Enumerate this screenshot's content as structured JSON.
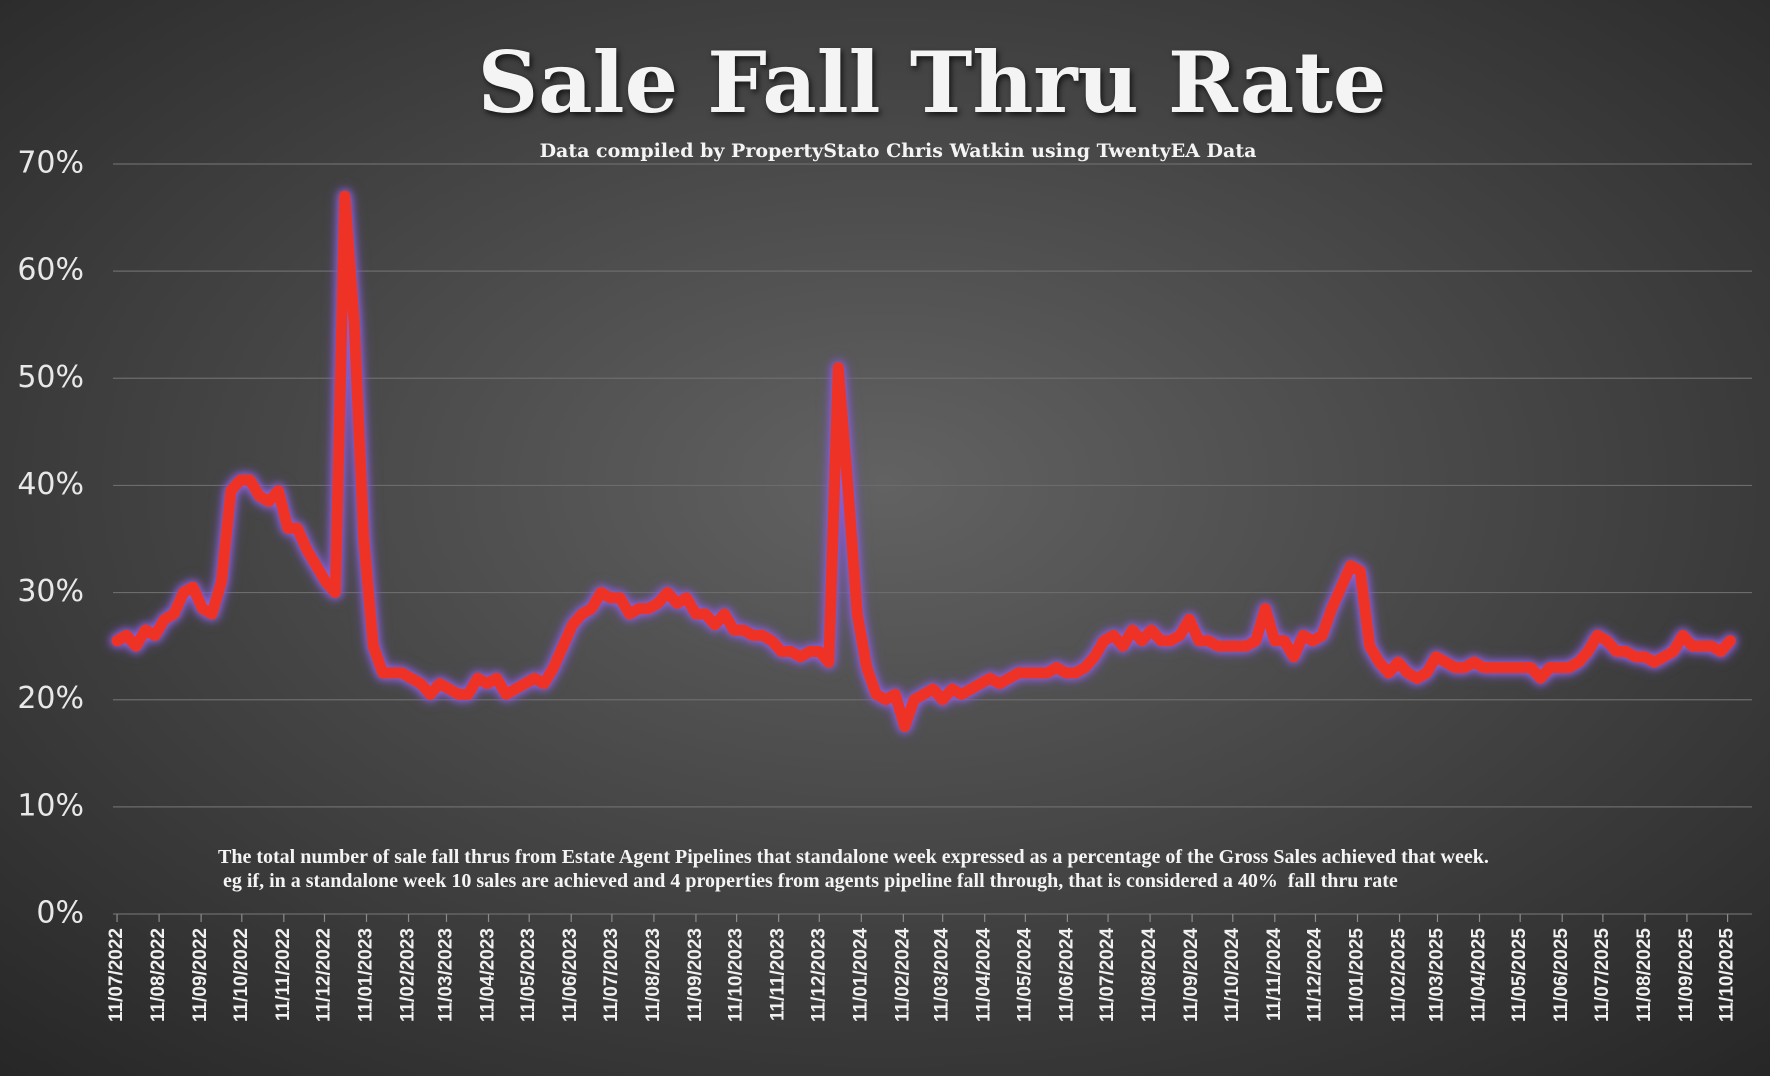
{
  "chart_data": {
    "type": "line",
    "title": "Sale Fall Thru Rate",
    "subtitle": "Data compiled by PropertyStato Chris Watkin using TwentyEA Data",
    "annotation": [
      "The total number of sale fall thrus from Estate Agent Pipelines that standalone week expressed as a percentage of the Gross Sales achieved that week.",
      " eg if, in a standalone week 10 sales are achieved and 4 properties from agents pipeline fall through, that is considered a 40%  fall thru rate"
    ],
    "color": "#ee3326",
    "grid": true,
    "ylim": [
      0,
      70
    ],
    "yticks": [
      {
        "value": 0,
        "label": "0%"
      },
      {
        "value": 10,
        "label": "10%"
      },
      {
        "value": 20,
        "label": "20%"
      },
      {
        "value": 30,
        "label": "30%"
      },
      {
        "value": 40,
        "label": "40%"
      },
      {
        "value": 50,
        "label": "50%"
      },
      {
        "value": 60,
        "label": "60%"
      },
      {
        "value": 70,
        "label": "70%"
      }
    ],
    "xlim": [
      "2022-07-08",
      "2025-10-29"
    ],
    "xticks": [
      {
        "value": "2022-07-11",
        "label": "11/07/2022"
      },
      {
        "value": "2022-08-11",
        "label": "11/08/2022"
      },
      {
        "value": "2022-09-11",
        "label": "11/09/2022"
      },
      {
        "value": "2022-10-11",
        "label": "11/10/2022"
      },
      {
        "value": "2022-11-11",
        "label": "11/11/2022"
      },
      {
        "value": "2022-12-11",
        "label": "11/12/2022"
      },
      {
        "value": "2023-01-11",
        "label": "11/01/2023"
      },
      {
        "value": "2023-02-11",
        "label": "11/02/2023"
      },
      {
        "value": "2023-03-11",
        "label": "11/03/2023"
      },
      {
        "value": "2023-04-11",
        "label": "11/04/2023"
      },
      {
        "value": "2023-05-11",
        "label": "11/05/2023"
      },
      {
        "value": "2023-06-11",
        "label": "11/06/2023"
      },
      {
        "value": "2023-07-11",
        "label": "11/07/2023"
      },
      {
        "value": "2023-08-11",
        "label": "11/08/2023"
      },
      {
        "value": "2023-09-11",
        "label": "11/09/2023"
      },
      {
        "value": "2023-10-11",
        "label": "11/10/2023"
      },
      {
        "value": "2023-11-11",
        "label": "11/11/2023"
      },
      {
        "value": "2023-12-11",
        "label": "11/12/2023"
      },
      {
        "value": "2024-01-11",
        "label": "11/01/2024"
      },
      {
        "value": "2024-02-11",
        "label": "11/02/2024"
      },
      {
        "value": "2024-03-11",
        "label": "11/03/2024"
      },
      {
        "value": "2024-04-11",
        "label": "11/04/2024"
      },
      {
        "value": "2024-05-11",
        "label": "11/05/2024"
      },
      {
        "value": "2024-06-11",
        "label": "11/06/2024"
      },
      {
        "value": "2024-07-11",
        "label": "11/07/2024"
      },
      {
        "value": "2024-08-11",
        "label": "11/08/2024"
      },
      {
        "value": "2024-09-11",
        "label": "11/09/2024"
      },
      {
        "value": "2024-10-11",
        "label": "11/10/2024"
      },
      {
        "value": "2024-11-11",
        "label": "11/11/2024"
      },
      {
        "value": "2024-12-11",
        "label": "11/12/2024"
      },
      {
        "value": "2025-01-11",
        "label": "11/01/2025"
      },
      {
        "value": "2025-02-11",
        "label": "11/02/2025"
      },
      {
        "value": "2025-03-11",
        "label": "11/03/2025"
      },
      {
        "value": "2025-04-11",
        "label": "11/04/2025"
      },
      {
        "value": "2025-05-11",
        "label": "11/05/2025"
      },
      {
        "value": "2025-06-11",
        "label": "11/06/2025"
      },
      {
        "value": "2025-07-11",
        "label": "11/07/2025"
      },
      {
        "value": "2025-08-11",
        "label": "11/08/2025"
      },
      {
        "value": "2025-09-11",
        "label": "11/09/2025"
      },
      {
        "value": "2025-10-11",
        "label": "11/10/2025"
      }
    ],
    "x": [
      "2022-07-11",
      "2022-07-18",
      "2022-07-25",
      "2022-08-01",
      "2022-08-08",
      "2022-08-15",
      "2022-08-22",
      "2022-08-29",
      "2022-09-05",
      "2022-09-12",
      "2022-09-19",
      "2022-09-26",
      "2022-10-03",
      "2022-10-10",
      "2022-10-17",
      "2022-10-24",
      "2022-10-31",
      "2022-11-07",
      "2022-11-14",
      "2022-11-21",
      "2022-11-28",
      "2022-12-05",
      "2022-12-12",
      "2022-12-19",
      "2022-12-26",
      "2023-01-02",
      "2023-01-09",
      "2023-01-16",
      "2023-01-23",
      "2023-01-30",
      "2023-02-06",
      "2023-02-13",
      "2023-02-20",
      "2023-02-27",
      "2023-03-06",
      "2023-03-13",
      "2023-03-20",
      "2023-03-27",
      "2023-04-03",
      "2023-04-10",
      "2023-04-17",
      "2023-04-24",
      "2023-05-01",
      "2023-05-08",
      "2023-05-15",
      "2023-05-22",
      "2023-05-29",
      "2023-06-05",
      "2023-06-12",
      "2023-06-19",
      "2023-06-26",
      "2023-07-03",
      "2023-07-10",
      "2023-07-17",
      "2023-07-24",
      "2023-07-31",
      "2023-08-07",
      "2023-08-14",
      "2023-08-21",
      "2023-08-28",
      "2023-09-04",
      "2023-09-11",
      "2023-09-18",
      "2023-09-25",
      "2023-10-02",
      "2023-10-09",
      "2023-10-16",
      "2023-10-23",
      "2023-10-30",
      "2023-11-06",
      "2023-11-13",
      "2023-11-20",
      "2023-11-27",
      "2023-12-04",
      "2023-12-11",
      "2023-12-18",
      "2023-12-25",
      "2024-01-01",
      "2024-01-08",
      "2024-01-15",
      "2024-01-22",
      "2024-01-29",
      "2024-02-05",
      "2024-02-12",
      "2024-02-19",
      "2024-02-26",
      "2024-03-04",
      "2024-03-11",
      "2024-03-18",
      "2024-03-25",
      "2024-04-01",
      "2024-04-08",
      "2024-04-15",
      "2024-04-22",
      "2024-04-29",
      "2024-05-06",
      "2024-05-13",
      "2024-05-20",
      "2024-05-27",
      "2024-06-03",
      "2024-06-10",
      "2024-06-17",
      "2024-06-24",
      "2024-07-01",
      "2024-07-08",
      "2024-07-15",
      "2024-07-22",
      "2024-07-29",
      "2024-08-05",
      "2024-08-12",
      "2024-08-19",
      "2024-08-26",
      "2024-09-02",
      "2024-09-09",
      "2024-09-16",
      "2024-09-23",
      "2024-09-30",
      "2024-10-07",
      "2024-10-14",
      "2024-10-21",
      "2024-10-28",
      "2024-11-04",
      "2024-11-11",
      "2024-11-18",
      "2024-11-25",
      "2024-12-02",
      "2024-12-09",
      "2024-12-16",
      "2024-12-23",
      "2024-12-30",
      "2025-01-06",
      "2025-01-13",
      "2025-01-20",
      "2025-01-27",
      "2025-02-03",
      "2025-02-10",
      "2025-02-17",
      "2025-02-24",
      "2025-03-03",
      "2025-03-10",
      "2025-03-17",
      "2025-03-24",
      "2025-03-31",
      "2025-04-07",
      "2025-04-14",
      "2025-04-21",
      "2025-04-28",
      "2025-05-05",
      "2025-05-12",
      "2025-05-19",
      "2025-05-26",
      "2025-06-02",
      "2025-06-09",
      "2025-06-16",
      "2025-06-23",
      "2025-06-30",
      "2025-07-07",
      "2025-07-14",
      "2025-07-21",
      "2025-07-28",
      "2025-08-04",
      "2025-08-11",
      "2025-08-18",
      "2025-08-25",
      "2025-09-01",
      "2025-09-08",
      "2025-09-15",
      "2025-09-22",
      "2025-09-29",
      "2025-10-06",
      "2025-10-13"
    ],
    "values": [
      25.5,
      26,
      25,
      26.5,
      26,
      27.5,
      28,
      30,
      30.5,
      28.5,
      28,
      31,
      39.5,
      40.5,
      40.5,
      39,
      38.5,
      39.5,
      36,
      36,
      34,
      32.5,
      31,
      30,
      67,
      55,
      35,
      25,
      22.5,
      22.5,
      22.5,
      22,
      21.5,
      20.5,
      21.5,
      21,
      20.5,
      20.5,
      22,
      21.5,
      22,
      20.5,
      21,
      21.5,
      22,
      21.5,
      23,
      25,
      27,
      28,
      28.5,
      30,
      29.5,
      29.5,
      28,
      28.5,
      28.5,
      29,
      30,
      29,
      29.5,
      28,
      28,
      27,
      28,
      26.5,
      26.5,
      26,
      26,
      25.5,
      24.5,
      24.5,
      24,
      24.5,
      24.5,
      23.5,
      51,
      40,
      28,
      23,
      20.5,
      20,
      20.5,
      17.5,
      20,
      20.5,
      21,
      20,
      21,
      20.5,
      21,
      21.5,
      22,
      21.5,
      22,
      22.5,
      22.5,
      22.5,
      22.5,
      23,
      22.5,
      22.5,
      23,
      24,
      25.5,
      26,
      25,
      26.5,
      25.5,
      26.5,
      25.5,
      25.5,
      26,
      27.5,
      25.5,
      25.5,
      25,
      25,
      25,
      25,
      25.5,
      28.5,
      25.5,
      25.5,
      24,
      26,
      25.5,
      26,
      28.5,
      30.5,
      32.5,
      32,
      25,
      23.5,
      22.5,
      23.5,
      22.5,
      22,
      22.5,
      24,
      23.5,
      23,
      23,
      23.5,
      23,
      23,
      23,
      23,
      23,
      23,
      22,
      23,
      23,
      23,
      23.5,
      24.5,
      26,
      25.5,
      24.5,
      24.5,
      24,
      24,
      23.5,
      24,
      24.5,
      26,
      25,
      25,
      25,
      24.5,
      25.5
    ]
  }
}
